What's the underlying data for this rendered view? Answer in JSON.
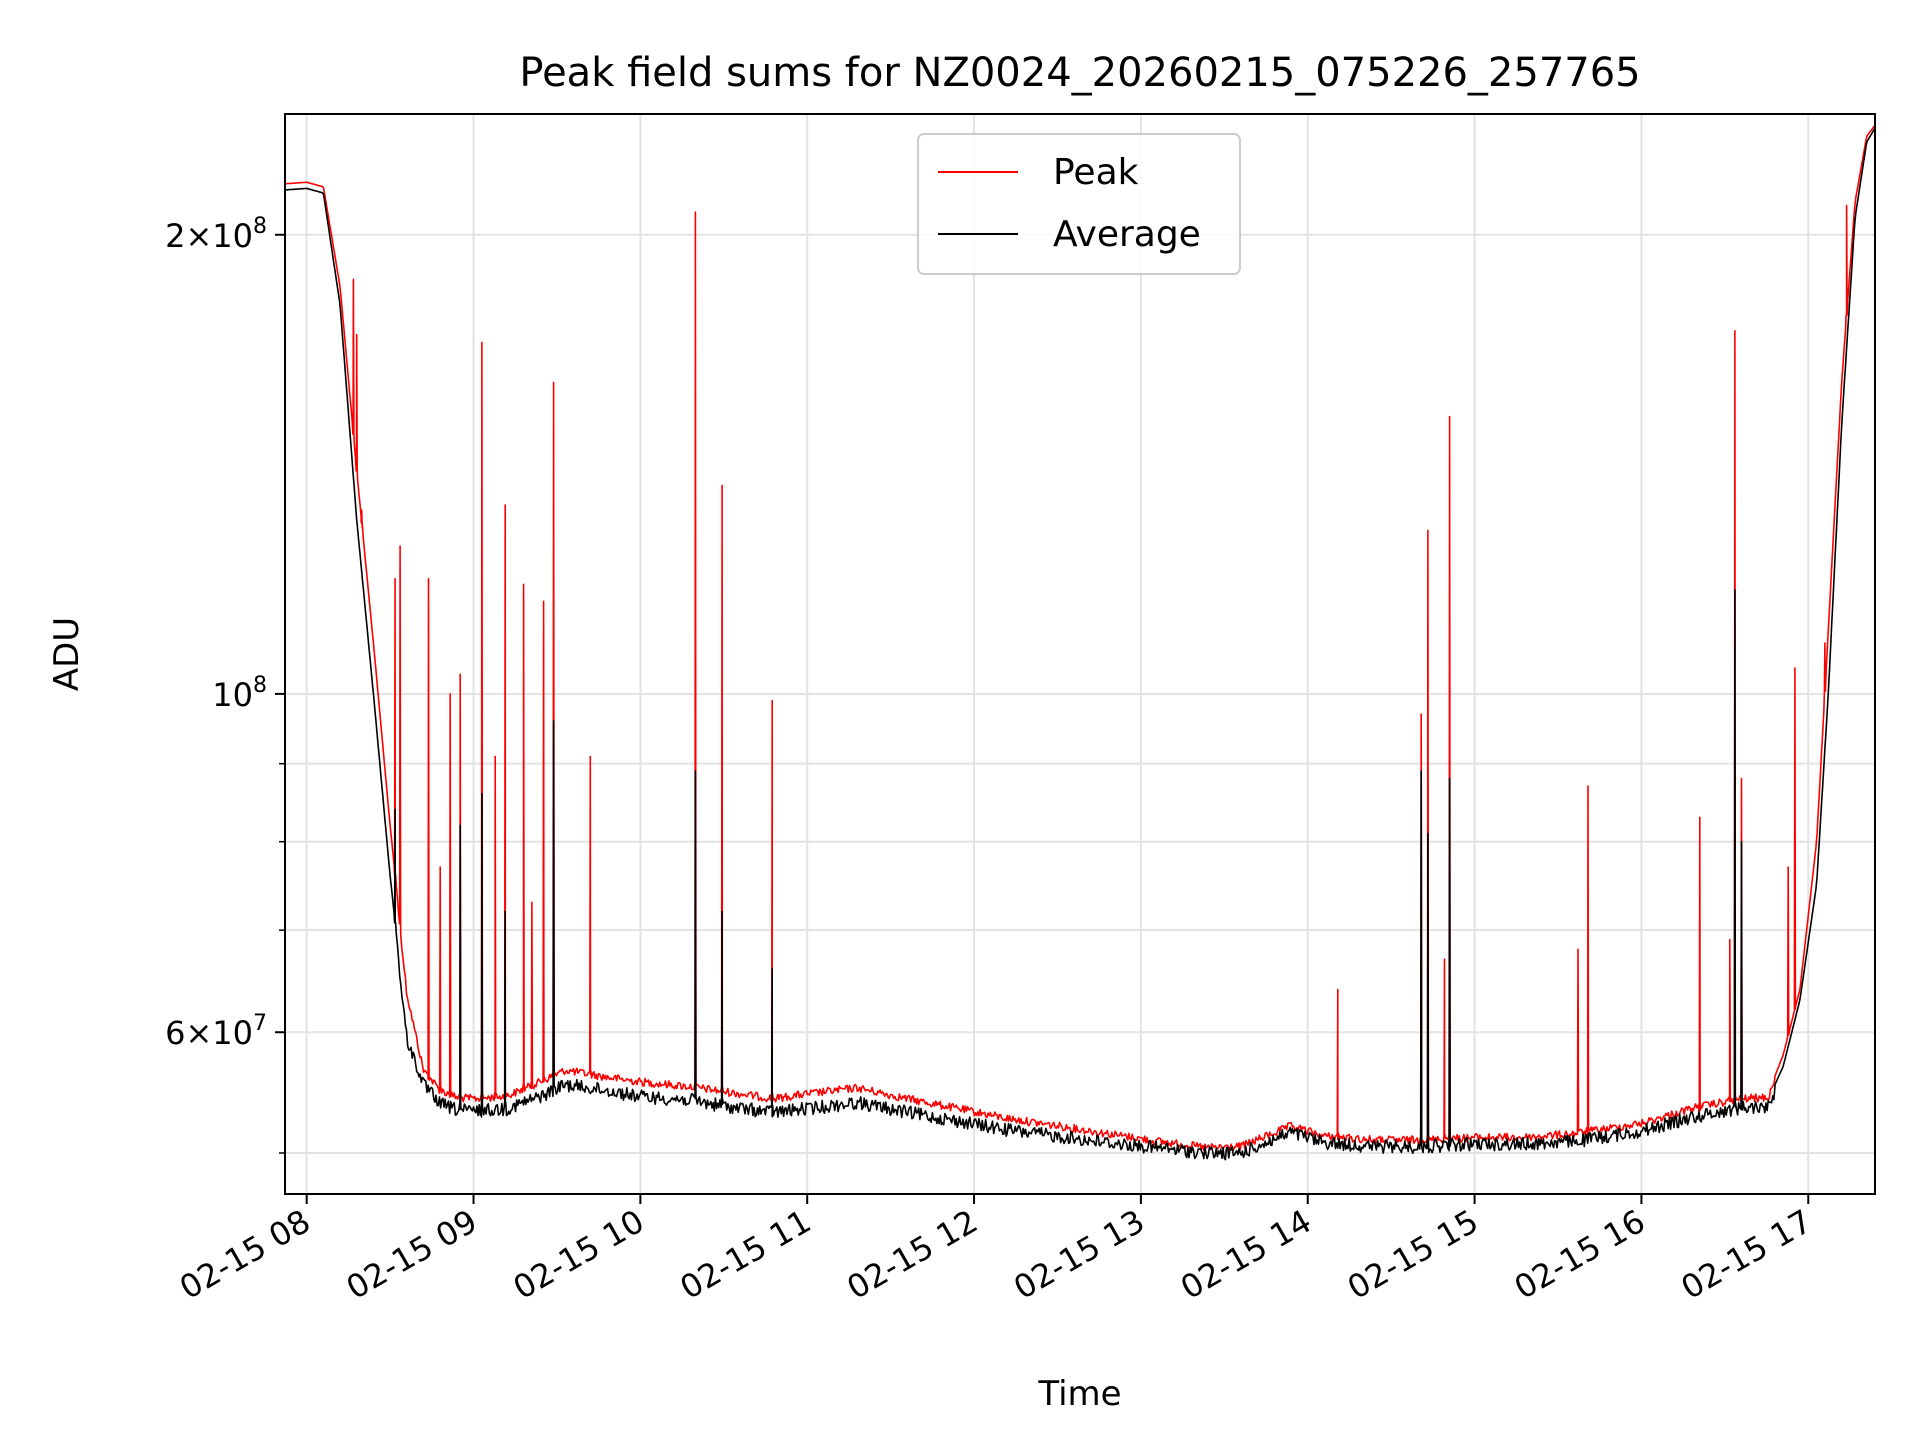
{
  "chart_data": {
    "type": "line",
    "title": "Peak field sums for NZ0024_20260215_075226_257765",
    "xlabel": "Time",
    "ylabel": "ADU",
    "yscale": "log",
    "ylim": [
      47000000,
      240000000
    ],
    "xlim": [
      7.87,
      17.4
    ],
    "x_unit": "hour of 2026-02-15",
    "grid": true,
    "legend_position": "upper center",
    "x_ticks": [
      {
        "value": 8,
        "label": "02-15 08"
      },
      {
        "value": 9,
        "label": "02-15 09"
      },
      {
        "value": 10,
        "label": "02-15 10"
      },
      {
        "value": 11,
        "label": "02-15 11"
      },
      {
        "value": 12,
        "label": "02-15 12"
      },
      {
        "value": 13,
        "label": "02-15 13"
      },
      {
        "value": 14,
        "label": "02-15 14"
      },
      {
        "value": 15,
        "label": "02-15 15"
      },
      {
        "value": 16,
        "label": "02-15 16"
      },
      {
        "value": 17,
        "label": "02-15 17"
      }
    ],
    "y_ticks_major": [
      {
        "value": 60000000,
        "mant": "6",
        "exp": "7"
      },
      {
        "value": 100000000,
        "mant": "",
        "exp": "8"
      },
      {
        "value": 200000000,
        "mant": "2",
        "exp": "8"
      }
    ],
    "y_ticks_minor": [
      50000000,
      70000000,
      80000000,
      90000000
    ],
    "series": [
      {
        "name": "Peak",
        "color": "#ff0000",
        "base": [
          [
            7.87,
            216000000
          ],
          [
            8.0,
            216500000
          ],
          [
            8.1,
            215000000
          ],
          [
            8.2,
            185000000
          ],
          [
            8.3,
            140000000
          ],
          [
            8.4,
            108000000
          ],
          [
            8.5,
            82000000
          ],
          [
            8.6,
            64000000
          ],
          [
            8.7,
            57000000
          ],
          [
            8.8,
            55300000
          ],
          [
            8.9,
            54700000
          ],
          [
            9.0,
            54600000
          ],
          [
            9.2,
            54800000
          ],
          [
            9.4,
            56000000
          ],
          [
            9.55,
            57000000
          ],
          [
            9.8,
            56400000
          ],
          [
            10.0,
            56000000
          ],
          [
            10.3,
            55600000
          ],
          [
            10.5,
            55200000
          ],
          [
            10.8,
            54600000
          ],
          [
            11.0,
            55000000
          ],
          [
            11.3,
            55500000
          ],
          [
            11.6,
            54600000
          ],
          [
            11.9,
            53800000
          ],
          [
            12.2,
            53000000
          ],
          [
            12.5,
            52400000
          ],
          [
            12.8,
            51800000
          ],
          [
            13.1,
            51200000
          ],
          [
            13.4,
            50700000
          ],
          [
            13.6,
            50800000
          ],
          [
            13.9,
            52400000
          ],
          [
            14.1,
            51600000
          ],
          [
            14.4,
            51300000
          ],
          [
            14.7,
            51300000
          ],
          [
            15.0,
            51500000
          ],
          [
            15.3,
            51500000
          ],
          [
            15.6,
            51800000
          ],
          [
            15.8,
            52200000
          ],
          [
            16.0,
            52600000
          ],
          [
            16.3,
            53800000
          ],
          [
            16.6,
            54600000
          ],
          [
            16.76,
            54700000
          ],
          [
            16.85,
            58000000
          ],
          [
            16.95,
            64000000
          ],
          [
            17.05,
            80000000
          ],
          [
            17.12,
            110000000
          ],
          [
            17.2,
            160000000
          ],
          [
            17.28,
            210000000
          ],
          [
            17.35,
            232000000
          ],
          [
            17.4,
            236000000
          ]
        ],
        "spikes": [
          [
            8.28,
            187000000
          ],
          [
            8.3,
            172000000
          ],
          [
            8.33,
            132000000
          ],
          [
            8.53,
            119000000
          ],
          [
            8.56,
            125000000
          ],
          [
            8.73,
            119000000
          ],
          [
            8.8,
            77000000
          ],
          [
            8.86,
            100000000
          ],
          [
            8.92,
            103000000
          ],
          [
            9.05,
            170000000
          ],
          [
            9.13,
            91000000
          ],
          [
            9.19,
            133000000
          ],
          [
            9.3,
            118000000
          ],
          [
            9.35,
            73000000
          ],
          [
            9.42,
            115000000
          ],
          [
            9.48,
            160000000
          ],
          [
            9.7,
            91000000
          ],
          [
            10.33,
            207000000
          ],
          [
            10.49,
            137000000
          ],
          [
            10.79,
            99000000
          ],
          [
            14.18,
            64000000
          ],
          [
            14.68,
            97000000
          ],
          [
            14.72,
            128000000
          ],
          [
            14.82,
            67000000
          ],
          [
            14.85,
            152000000
          ],
          [
            15.62,
            68000000
          ],
          [
            15.68,
            87000000
          ],
          [
            16.35,
            83000000
          ],
          [
            16.53,
            69000000
          ],
          [
            16.56,
            173000000
          ],
          [
            16.6,
            88000000
          ],
          [
            16.88,
            77000000
          ],
          [
            16.92,
            104000000
          ],
          [
            17.1,
            108000000
          ],
          [
            17.23,
            209000000
          ]
        ]
      },
      {
        "name": "Average",
        "color": "#000000",
        "base": [
          [
            7.87,
            214000000
          ],
          [
            8.0,
            214500000
          ],
          [
            8.1,
            213000000
          ],
          [
            8.2,
            180000000
          ],
          [
            8.3,
            130000000
          ],
          [
            8.4,
            100000000
          ],
          [
            8.5,
            76000000
          ],
          [
            8.6,
            60000000
          ],
          [
            8.7,
            56000000
          ],
          [
            8.8,
            54400000
          ],
          [
            8.9,
            53900000
          ],
          [
            9.0,
            53800000
          ],
          [
            9.2,
            54000000
          ],
          [
            9.4,
            55000000
          ],
          [
            9.55,
            56000000
          ],
          [
            9.8,
            55500000
          ],
          [
            10.0,
            55000000
          ],
          [
            10.3,
            54700000
          ],
          [
            10.5,
            54200000
          ],
          [
            10.8,
            53700000
          ],
          [
            11.0,
            54000000
          ],
          [
            11.3,
            54500000
          ],
          [
            11.6,
            53700000
          ],
          [
            11.9,
            53000000
          ],
          [
            12.2,
            52300000
          ],
          [
            12.5,
            51800000
          ],
          [
            12.8,
            51300000
          ],
          [
            13.1,
            50900000
          ],
          [
            13.4,
            50500000
          ],
          [
            13.6,
            50500000
          ],
          [
            13.9,
            52100000
          ],
          [
            14.1,
            51300000
          ],
          [
            14.4,
            51000000
          ],
          [
            14.7,
            51000000
          ],
          [
            15.0,
            51200000
          ],
          [
            15.3,
            51200000
          ],
          [
            15.6,
            51400000
          ],
          [
            15.8,
            51800000
          ],
          [
            16.0,
            52200000
          ],
          [
            16.3,
            53300000
          ],
          [
            16.6,
            54100000
          ],
          [
            16.76,
            54200000
          ],
          [
            16.85,
            57000000
          ],
          [
            16.95,
            63000000
          ],
          [
            17.05,
            75000000
          ],
          [
            17.12,
            100000000
          ],
          [
            17.2,
            150000000
          ],
          [
            17.28,
            205000000
          ],
          [
            17.35,
            230000000
          ],
          [
            17.4,
            235000000
          ]
        ],
        "spikes": [
          [
            8.53,
            84000000
          ],
          [
            8.92,
            82000000
          ],
          [
            9.05,
            86000000
          ],
          [
            9.19,
            72000000
          ],
          [
            9.48,
            96000000
          ],
          [
            10.33,
            89000000
          ],
          [
            10.49,
            72000000
          ],
          [
            10.79,
            66000000
          ],
          [
            14.68,
            89000000
          ],
          [
            14.72,
            81000000
          ],
          [
            14.85,
            88000000
          ],
          [
            16.56,
            117000000
          ],
          [
            16.6,
            80000000
          ]
        ]
      }
    ]
  }
}
